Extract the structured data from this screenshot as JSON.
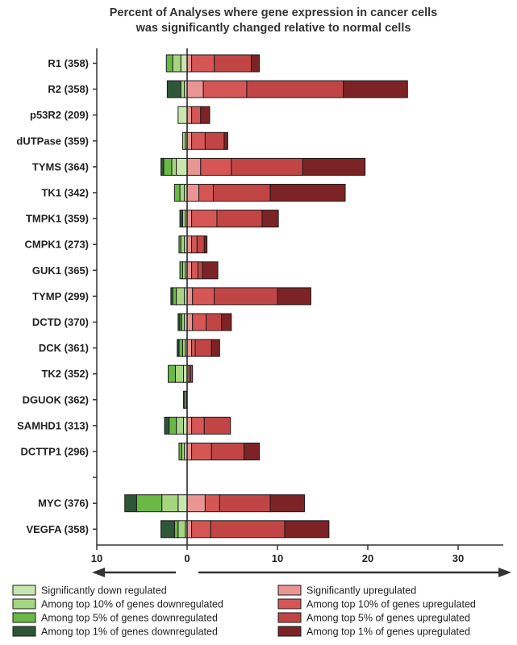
{
  "chart_data": {
    "type": "bar",
    "orientation": "horizontal",
    "stacked": true,
    "title": "Percent of Analyses where gene expression in cancer cells was significantly changed relative to normal cells",
    "title_lines": [
      "Percent of Analyses where gene expression in cancer cells",
      "was significantly changed relative to normal cells"
    ],
    "categories": [
      "R1 (358)",
      "R2 (358)",
      "p53R2 (209)",
      "dUTPase (359)",
      "TYMS (364)",
      "TK1 (342)",
      "TMPK1 (359)",
      "CMPK1 (273)",
      "GUK1 (365)",
      "TYMP (299)",
      "DCTD (370)",
      "DCK (361)",
      "TK2 (352)",
      "DGUOK (362)",
      "SAMHD1 (313)",
      "DCTTP1 (296)",
      "",
      "MYC (376)",
      "VEGFA (358)"
    ],
    "x_ticks": [
      {
        "value": -10,
        "label": "10"
      },
      {
        "value": 0,
        "label": "0"
      },
      {
        "value": 10,
        "label": "10"
      },
      {
        "value": 20,
        "label": "20"
      },
      {
        "value": 30,
        "label": "30"
      }
    ],
    "xlim": [
      -10,
      35
    ],
    "down_series": [
      {
        "name": "Significantly down regulated",
        "color": "#c9e6b0",
        "values": [
          0.7,
          0.3,
          1.0,
          0.2,
          1.2,
          0.3,
          0.2,
          0.3,
          0.2,
          0.3,
          0.3,
          0.2,
          0.4,
          0.1,
          0.4,
          0.3,
          0,
          1.0,
          0.2
        ]
      },
      {
        "name": "Among top 10% of genes downregulated",
        "color": "#a6d67f",
        "values": [
          0.9,
          0.4,
          0,
          0.3,
          0.5,
          0.5,
          0.3,
          0.4,
          0.3,
          0.9,
          0.3,
          0.3,
          0.9,
          0.2,
          0.8,
          0.3,
          0,
          1.8,
          0.8
        ]
      },
      {
        "name": "Among top 5% of genes downregulated",
        "color": "#6ab845",
        "values": [
          0.7,
          0,
          0,
          0,
          0.9,
          0.6,
          0,
          0.2,
          0.3,
          0.4,
          0.2,
          0.4,
          0.8,
          0.1,
          0.8,
          0.3,
          0,
          2.8,
          0.4
        ]
      },
      {
        "name": "Among top 1% of genes downregulated",
        "color": "#2d5736",
        "values": [
          0,
          1.5,
          0,
          0,
          0.3,
          0,
          0.3,
          0,
          0,
          0.2,
          0.2,
          0.2,
          0,
          0,
          0.5,
          0,
          0,
          1.3,
          1.5
        ]
      }
    ],
    "up_series": [
      {
        "name": "Significantly upregulated",
        "color": "#e99594",
        "values": [
          0.5,
          1.8,
          0.5,
          0.5,
          1.5,
          1.3,
          0.5,
          0.5,
          0.5,
          0.6,
          0.6,
          0.5,
          0.2,
          0,
          0.5,
          0.5,
          0,
          2.0,
          0.5
        ]
      },
      {
        "name": "Among top 10% of genes upregulated",
        "color": "#d65656",
        "values": [
          2.5,
          4.8,
          1.0,
          1.5,
          3.4,
          1.6,
          2.8,
          0.6,
          0.7,
          2.4,
          1.5,
          0.4,
          0.2,
          0,
          1.4,
          2.2,
          0,
          1.6,
          2.1
        ]
      },
      {
        "name": "Among top 5% of genes upregulated",
        "color": "#c24545",
        "values": [
          4.1,
          10.7,
          0,
          2.1,
          7.9,
          6.3,
          5.0,
          0.8,
          0.5,
          7.0,
          1.7,
          1.8,
          0.2,
          0,
          2.9,
          3.6,
          0,
          5.6,
          8.2
        ]
      },
      {
        "name": "Among top 1% of genes upregulated",
        "color": "#7c2326",
        "values": [
          0.9,
          7.1,
          1.0,
          0.4,
          6.9,
          8.3,
          1.8,
          0.3,
          1.7,
          3.7,
          1.1,
          0.9,
          0,
          0,
          0,
          1.7,
          0,
          3.8,
          4.9
        ]
      }
    ],
    "legend_position": "bottom",
    "arrows": [
      "left",
      "right"
    ]
  }
}
